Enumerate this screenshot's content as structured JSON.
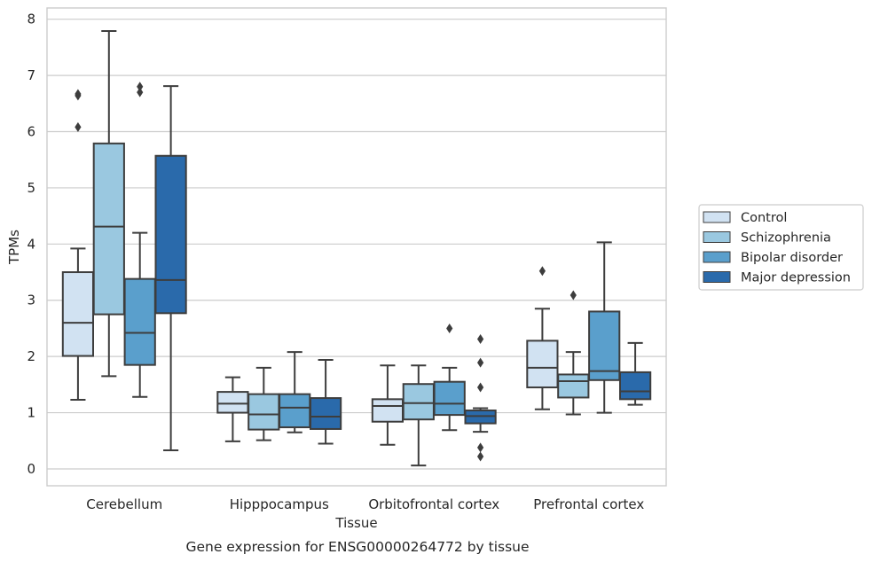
{
  "chart_data": {
    "type": "boxplot",
    "title": "",
    "caption": "Gene expression for ENSG00000264772 by tissue",
    "xlabel": "Tissue",
    "ylabel": "TPMs",
    "ylim": [
      -0.3,
      8.2
    ],
    "yticks": [
      0,
      1,
      2,
      3,
      4,
      5,
      6,
      7,
      8
    ],
    "grid": "horizontal",
    "legend_position": "right",
    "categories": [
      "Cerebellum",
      "Hipppocampus",
      "Orbitofrontal cortex",
      "Prefrontal cortex"
    ],
    "series": [
      {
        "name": "Control",
        "color": "#d1e2f2",
        "boxes": [
          {
            "whisker_low": 1.23,
            "q1": 2.01,
            "median": 2.6,
            "q3": 3.5,
            "whisker_high": 3.92,
            "outliers": [
              6.08,
              6.64,
              6.67
            ]
          },
          {
            "whisker_low": 0.49,
            "q1": 1.0,
            "median": 1.16,
            "q3": 1.37,
            "whisker_high": 1.63,
            "outliers": []
          },
          {
            "whisker_low": 0.43,
            "q1": 0.84,
            "median": 1.12,
            "q3": 1.24,
            "whisker_high": 1.84,
            "outliers": []
          },
          {
            "whisker_low": 1.06,
            "q1": 1.45,
            "median": 1.8,
            "q3": 2.28,
            "whisker_high": 2.85,
            "outliers": [
              3.52
            ]
          }
        ]
      },
      {
        "name": "Schizophrenia",
        "color": "#9ac8e0",
        "boxes": [
          {
            "whisker_low": 1.65,
            "q1": 2.75,
            "median": 4.31,
            "q3": 5.79,
            "whisker_high": 7.79,
            "outliers": []
          },
          {
            "whisker_low": 0.51,
            "q1": 0.7,
            "median": 0.97,
            "q3": 1.33,
            "whisker_high": 1.8,
            "outliers": []
          },
          {
            "whisker_low": 0.06,
            "q1": 0.88,
            "median": 1.17,
            "q3": 1.51,
            "whisker_high": 1.84,
            "outliers": []
          },
          {
            "whisker_low": 0.97,
            "q1": 1.27,
            "median": 1.56,
            "q3": 1.68,
            "whisker_high": 2.08,
            "outliers": [
              3.09
            ]
          }
        ]
      },
      {
        "name": "Bipolar disorder",
        "color": "#5a9fcc",
        "boxes": [
          {
            "whisker_low": 1.28,
            "q1": 1.85,
            "median": 2.42,
            "q3": 3.38,
            "whisker_high": 4.2,
            "outliers": [
              6.7,
              6.8
            ]
          },
          {
            "whisker_low": 0.65,
            "q1": 0.74,
            "median": 1.09,
            "q3": 1.33,
            "whisker_high": 2.08,
            "outliers": []
          },
          {
            "whisker_low": 0.69,
            "q1": 0.96,
            "median": 1.16,
            "q3": 1.55,
            "whisker_high": 1.8,
            "outliers": [
              2.5
            ]
          },
          {
            "whisker_low": 1.0,
            "q1": 1.58,
            "median": 1.74,
            "q3": 2.8,
            "whisker_high": 4.03,
            "outliers": []
          }
        ]
      },
      {
        "name": "Major depression",
        "color": "#2a6aab",
        "boxes": [
          {
            "whisker_low": 0.33,
            "q1": 2.77,
            "median": 3.36,
            "q3": 5.57,
            "whisker_high": 6.81,
            "outliers": []
          },
          {
            "whisker_low": 0.45,
            "q1": 0.71,
            "median": 0.93,
            "q3": 1.26,
            "whisker_high": 1.94,
            "outliers": []
          },
          {
            "whisker_low": 0.66,
            "q1": 0.81,
            "median": 0.94,
            "q3": 1.04,
            "whisker_high": 1.08,
            "outliers": [
              0.22,
              0.38,
              1.45,
              1.89,
              2.31
            ]
          },
          {
            "whisker_low": 1.14,
            "q1": 1.24,
            "median": 1.38,
            "q3": 1.72,
            "whisker_high": 2.24,
            "outliers": []
          }
        ]
      }
    ]
  }
}
